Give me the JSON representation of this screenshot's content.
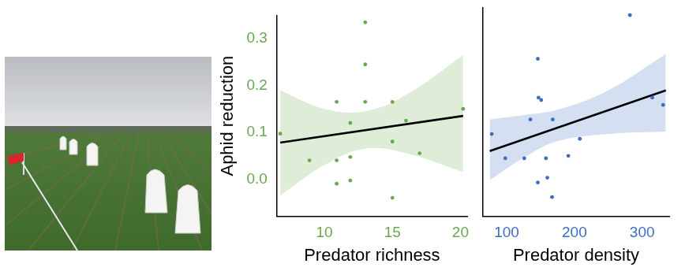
{
  "chart_data": [
    {
      "type": "scatter",
      "x_label": "Predator richness",
      "y_label": "Aphid reduction",
      "color": "#6aa84f",
      "x": [
        6.75,
        8.9,
        10.9,
        10.9,
        10.9,
        11.9,
        11.9,
        11.9,
        13,
        13,
        13,
        15,
        15,
        15,
        16,
        17,
        20.2
      ],
      "values": [
        0.097,
        0.04,
        0.04,
        -0.01,
        0.165,
        0.047,
        -0.003,
        0.12,
        0.165,
        0.245,
        0.335,
        0.165,
        0.08,
        -0.04,
        0.125,
        0.055,
        0.15
      ],
      "fit": {
        "x": [
          6.75,
          20.2
        ],
        "values": [
          0.078,
          0.135
        ]
      },
      "band": {
        "x": [
          6.75,
          10,
          13,
          16,
          20.2
        ],
        "lower": [
          -0.035,
          0.03,
          0.065,
          0.055,
          0.015
        ],
        "upper": [
          0.19,
          0.15,
          0.145,
          0.18,
          0.265
        ]
      },
      "xlim": [
        6.5,
        20.5
      ],
      "xticks": [
        10,
        15,
        20
      ],
      "ylim": [
        -0.08,
        0.35
      ],
      "yticks": [
        {
          "value": 0,
          "label": "0.0"
        },
        {
          "value": 0.1,
          "label": "0.1"
        },
        {
          "value": 0.2,
          "label": "0.2"
        },
        {
          "value": 0.3,
          "label": "0.3"
        }
      ],
      "grid": false
    },
    {
      "type": "scatter",
      "x_label": "Predator density",
      "color": "#3d6cc0",
      "x": [
        78,
        98,
        126,
        135,
        147,
        151,
        146,
        146,
        158,
        160,
        167,
        168,
        191,
        208,
        282,
        315,
        331
      ],
      "values": [
        0.09,
        0.04,
        0.04,
        0.12,
        0.165,
        0.16,
        0.245,
        -0.01,
        0.04,
        0.0,
        -0.04,
        0.12,
        0.045,
        0.08,
        0.335,
        0.165,
        0.15
      ],
      "fit": {
        "x": [
          75,
          335
        ],
        "values": [
          0.055,
          0.18
        ]
      },
      "band": {
        "x": [
          75,
          130,
          175,
          250,
          335
        ],
        "lower": [
          -0.005,
          0.045,
          0.075,
          0.09,
          0.095
        ],
        "upper": [
          0.12,
          0.13,
          0.14,
          0.18,
          0.255
        ]
      },
      "xlim": [
        65,
        340
      ],
      "xticks": [
        100,
        200,
        300
      ],
      "ylim": [
        -0.08,
        0.35
      ],
      "yticks": [
        {
          "value": 0,
          "label": "0.0"
        },
        {
          "value": 0.1,
          "label": "0.1"
        },
        {
          "value": 0.2,
          "label": "0.2"
        },
        {
          "value": 0.3,
          "label": "0.3"
        }
      ],
      "grid": false,
      "tick_labels": "x"
    }
  ]
}
